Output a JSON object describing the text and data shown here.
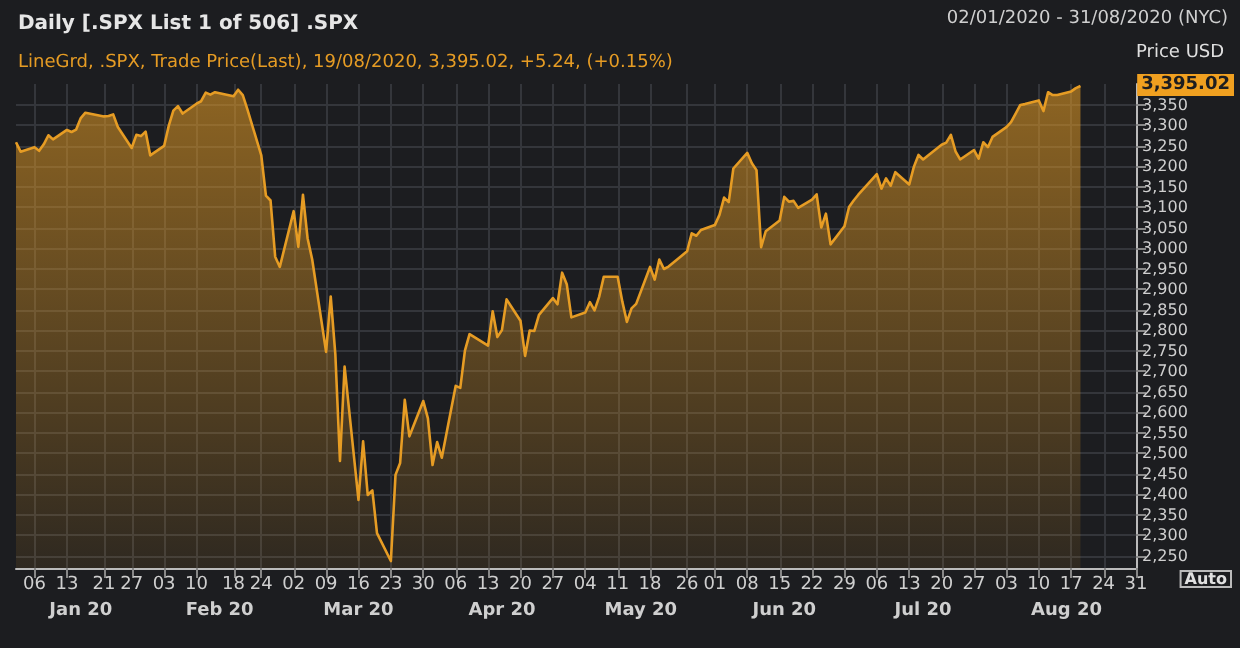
{
  "chart_data": {
    "type": "area",
    "title": "Daily [.SPX List 1 of 506] .SPX",
    "subtitle": "LineGrd, .SPX, Trade Price(Last), 19/08/2020, 3,395.02, +5.24, (+0.15%)",
    "ylabel": "Price USD",
    "annotations": [
      "02/01/2020 - 31/08/2020 (NYC)",
      "Auto",
      "3,395.02"
    ],
    "x": [
      "2020-01-02",
      "2020-01-03",
      "2020-01-06",
      "2020-01-07",
      "2020-01-08",
      "2020-01-09",
      "2020-01-10",
      "2020-01-13",
      "2020-01-14",
      "2020-01-15",
      "2020-01-16",
      "2020-01-17",
      "2020-01-21",
      "2020-01-22",
      "2020-01-23",
      "2020-01-24",
      "2020-01-27",
      "2020-01-28",
      "2020-01-29",
      "2020-01-30",
      "2020-01-31",
      "2020-02-03",
      "2020-02-04",
      "2020-02-05",
      "2020-02-06",
      "2020-02-07",
      "2020-02-10",
      "2020-02-11",
      "2020-02-12",
      "2020-02-13",
      "2020-02-14",
      "2020-02-18",
      "2020-02-19",
      "2020-02-20",
      "2020-02-21",
      "2020-02-24",
      "2020-02-25",
      "2020-02-26",
      "2020-02-27",
      "2020-02-28",
      "2020-03-02",
      "2020-03-03",
      "2020-03-04",
      "2020-03-05",
      "2020-03-06",
      "2020-03-09",
      "2020-03-10",
      "2020-03-11",
      "2020-03-12",
      "2020-03-13",
      "2020-03-16",
      "2020-03-17",
      "2020-03-18",
      "2020-03-19",
      "2020-03-20",
      "2020-03-23",
      "2020-03-24",
      "2020-03-25",
      "2020-03-26",
      "2020-03-27",
      "2020-03-30",
      "2020-03-31",
      "2020-04-01",
      "2020-04-02",
      "2020-04-03",
      "2020-04-06",
      "2020-04-07",
      "2020-04-08",
      "2020-04-09",
      "2020-04-13",
      "2020-04-14",
      "2020-04-15",
      "2020-04-16",
      "2020-04-17",
      "2020-04-20",
      "2020-04-21",
      "2020-04-22",
      "2020-04-23",
      "2020-04-24",
      "2020-04-27",
      "2020-04-28",
      "2020-04-29",
      "2020-04-30",
      "2020-05-01",
      "2020-05-04",
      "2020-05-05",
      "2020-05-06",
      "2020-05-07",
      "2020-05-08",
      "2020-05-11",
      "2020-05-12",
      "2020-05-13",
      "2020-05-14",
      "2020-05-15",
      "2020-05-18",
      "2020-05-19",
      "2020-05-20",
      "2020-05-21",
      "2020-05-22",
      "2020-05-26",
      "2020-05-27",
      "2020-05-28",
      "2020-05-29",
      "2020-06-01",
      "2020-06-02",
      "2020-06-03",
      "2020-06-04",
      "2020-06-05",
      "2020-06-08",
      "2020-06-09",
      "2020-06-10",
      "2020-06-11",
      "2020-06-12",
      "2020-06-15",
      "2020-06-16",
      "2020-06-17",
      "2020-06-18",
      "2020-06-19",
      "2020-06-22",
      "2020-06-23",
      "2020-06-24",
      "2020-06-25",
      "2020-06-26",
      "2020-06-29",
      "2020-06-30",
      "2020-07-01",
      "2020-07-02",
      "2020-07-06",
      "2020-07-07",
      "2020-07-08",
      "2020-07-09",
      "2020-07-10",
      "2020-07-13",
      "2020-07-14",
      "2020-07-15",
      "2020-07-16",
      "2020-07-17",
      "2020-07-20",
      "2020-07-21",
      "2020-07-22",
      "2020-07-23",
      "2020-07-24",
      "2020-07-27",
      "2020-07-28",
      "2020-07-29",
      "2020-07-30",
      "2020-07-31",
      "2020-08-03",
      "2020-08-04",
      "2020-08-05",
      "2020-08-06",
      "2020-08-07",
      "2020-08-10",
      "2020-08-11",
      "2020-08-12",
      "2020-08-13",
      "2020-08-14",
      "2020-08-17",
      "2020-08-18",
      "2020-08-19"
    ],
    "series": [
      {
        "color": "#e69c24",
        "values": [
          3258,
          3235,
          3246,
          3237,
          3253,
          3275,
          3265,
          3288,
          3283,
          3289,
          3317,
          3330,
          3321,
          3322,
          3326,
          3295,
          3244,
          3276,
          3273,
          3284,
          3226,
          3249,
          3298,
          3335,
          3346,
          3328,
          3352,
          3358,
          3379,
          3374,
          3380,
          3370,
          3386,
          3373,
          3338,
          3226,
          3128,
          3116,
          2979,
          2954,
          3090,
          3003,
          3130,
          3024,
          2972,
          2747,
          2882,
          2741,
          2481,
          2711,
          2386,
          2529,
          2398,
          2409,
          2305,
          2237,
          2447,
          2476,
          2630,
          2541,
          2627,
          2585,
          2471,
          2527,
          2489,
          2664,
          2659,
          2750,
          2790,
          2762,
          2846,
          2783,
          2800,
          2875,
          2823,
          2737,
          2799,
          2798,
          2837,
          2878,
          2863,
          2940,
          2912,
          2831,
          2843,
          2868,
          2848,
          2881,
          2930,
          2930,
          2870,
          2820,
          2853,
          2864,
          2954,
          2923,
          2972,
          2949,
          2955,
          2992,
          3036,
          3030,
          3044,
          3056,
          3081,
          3123,
          3112,
          3194,
          3232,
          3207,
          3190,
          3002,
          3041,
          3067,
          3125,
          3113,
          3115,
          3098,
          3118,
          3131,
          3050,
          3084,
          3009,
          3053,
          3100,
          3116,
          3130,
          3180,
          3145,
          3170,
          3152,
          3185,
          3155,
          3198,
          3227,
          3216,
          3225,
          3252,
          3257,
          3276,
          3236,
          3216,
          3239,
          3218,
          3258,
          3246,
          3271,
          3295,
          3307,
          3328,
          3349,
          3351,
          3360,
          3334,
          3380,
          3373,
          3373,
          3382,
          3390,
          3395
        ]
      }
    ],
    "xlim": [
      "2020-01-02",
      "2020-08-31"
    ],
    "xticks": [
      {
        "value": "2020-01-06",
        "label": "06"
      },
      {
        "value": "2020-01-13",
        "label": "13"
      },
      {
        "value": "2020-01-21",
        "label": "21"
      },
      {
        "value": "2020-01-27",
        "label": "27"
      },
      {
        "value": "2020-02-03",
        "label": "03"
      },
      {
        "value": "2020-02-10",
        "label": "10"
      },
      {
        "value": "2020-02-18",
        "label": "18"
      },
      {
        "value": "2020-02-24",
        "label": "24"
      },
      {
        "value": "2020-03-02",
        "label": "02"
      },
      {
        "value": "2020-03-09",
        "label": "09"
      },
      {
        "value": "2020-03-16",
        "label": "16"
      },
      {
        "value": "2020-03-23",
        "label": "23"
      },
      {
        "value": "2020-03-30",
        "label": "30"
      },
      {
        "value": "2020-04-06",
        "label": "06"
      },
      {
        "value": "2020-04-13",
        "label": "13"
      },
      {
        "value": "2020-04-20",
        "label": "20"
      },
      {
        "value": "2020-04-27",
        "label": "27"
      },
      {
        "value": "2020-05-04",
        "label": "04"
      },
      {
        "value": "2020-05-11",
        "label": "11"
      },
      {
        "value": "2020-05-18",
        "label": "18"
      },
      {
        "value": "2020-05-26",
        "label": "26"
      },
      {
        "value": "2020-06-01",
        "label": "01"
      },
      {
        "value": "2020-06-08",
        "label": "08"
      },
      {
        "value": "2020-06-15",
        "label": "15"
      },
      {
        "value": "2020-06-22",
        "label": "22"
      },
      {
        "value": "2020-06-29",
        "label": "29"
      },
      {
        "value": "2020-07-06",
        "label": "06"
      },
      {
        "value": "2020-07-13",
        "label": "13"
      },
      {
        "value": "2020-07-20",
        "label": "20"
      },
      {
        "value": "2020-07-27",
        "label": "27"
      },
      {
        "value": "2020-08-03",
        "label": "03"
      },
      {
        "value": "2020-08-10",
        "label": "10"
      },
      {
        "value": "2020-08-17",
        "label": "17"
      },
      {
        "value": "2020-08-24",
        "label": "24"
      },
      {
        "value": "2020-08-31",
        "label": "31"
      }
    ],
    "x2lim": [
      "2020-01-02",
      "2020-08-31"
    ],
    "x2ticks": [
      {
        "value": "2020-01-16",
        "label": "Jan 20"
      },
      {
        "value": "2020-02-15",
        "label": "Feb 20"
      },
      {
        "value": "2020-03-16",
        "label": "Mar 20"
      },
      {
        "value": "2020-04-16",
        "label": "Apr 20"
      },
      {
        "value": "2020-05-16",
        "label": "May 20"
      },
      {
        "value": "2020-06-16",
        "label": "Jun 20"
      },
      {
        "value": "2020-07-16",
        "label": "Jul 20"
      },
      {
        "value": "2020-08-16",
        "label": "Aug 20"
      }
    ],
    "ylim": [
      2220,
      3400
    ],
    "yticks": [
      {
        "value": 2250,
        "label": "2,250"
      },
      {
        "value": 2300,
        "label": "2,300"
      },
      {
        "value": 2350,
        "label": "2,350"
      },
      {
        "value": 2400,
        "label": "2,400"
      },
      {
        "value": 2450,
        "label": "2,450"
      },
      {
        "value": 2500,
        "label": "2,500"
      },
      {
        "value": 2550,
        "label": "2,550"
      },
      {
        "value": 2600,
        "label": "2,600"
      },
      {
        "value": 2650,
        "label": "2,650"
      },
      {
        "value": 2700,
        "label": "2,700"
      },
      {
        "value": 2750,
        "label": "2,750"
      },
      {
        "value": 2800,
        "label": "2,800"
      },
      {
        "value": 2850,
        "label": "2,850"
      },
      {
        "value": 2900,
        "label": "2,900"
      },
      {
        "value": 2950,
        "label": "2,950"
      },
      {
        "value": 3000,
        "label": "3,000"
      },
      {
        "value": 3050,
        "label": "3,050"
      },
      {
        "value": 3100,
        "label": "3,100"
      },
      {
        "value": 3150,
        "label": "3,150"
      },
      {
        "value": 3200,
        "label": "3,200"
      },
      {
        "value": 3250,
        "label": "3,250"
      },
      {
        "value": 3300,
        "label": "3,300"
      },
      {
        "value": 3350,
        "label": "3,350"
      }
    ],
    "grid": true,
    "marker": "none",
    "line_style": "solid"
  }
}
